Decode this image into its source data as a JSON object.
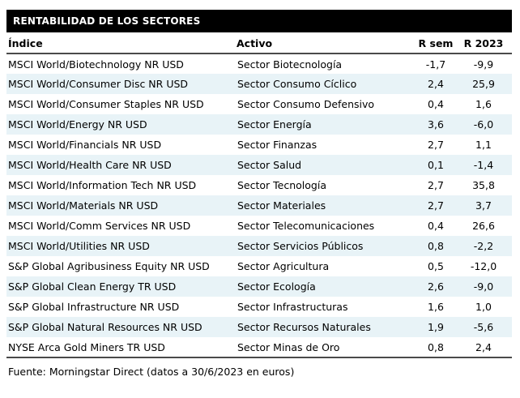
{
  "title": "RENTABILIDAD DE LOS SECTORES",
  "table": {
    "columns": [
      "Índice",
      "Activo",
      "R sem",
      "R 2023"
    ],
    "rows": [
      {
        "indice": "MSCI World/Biotechnology NR USD",
        "activo": "Sector Biotecnología",
        "r_sem": "-1,7",
        "r_2023": "-9,9"
      },
      {
        "indice": "MSCI World/Consumer Disc NR USD",
        "activo": "Sector Consumo Cíclico",
        "r_sem": "2,4",
        "r_2023": "25,9"
      },
      {
        "indice": "MSCI World/Consumer Staples NR USD",
        "activo": "Sector Consumo Defensivo",
        "r_sem": "0,4",
        "r_2023": "1,6"
      },
      {
        "indice": "MSCI World/Energy NR USD",
        "activo": "Sector Energía",
        "r_sem": "3,6",
        "r_2023": "-6,0"
      },
      {
        "indice": "MSCI World/Financials NR USD",
        "activo": "Sector Finanzas",
        "r_sem": "2,7",
        "r_2023": "1,1"
      },
      {
        "indice": "MSCI World/Health Care NR USD",
        "activo": "Sector Salud",
        "r_sem": "0,1",
        "r_2023": "-1,4"
      },
      {
        "indice": "MSCI World/Information Tech NR USD",
        "activo": "Sector Tecnología",
        "r_sem": "2,7",
        "r_2023": "35,8"
      },
      {
        "indice": "MSCI World/Materials NR USD",
        "activo": "Sector Materiales",
        "r_sem": "2,7",
        "r_2023": "3,7"
      },
      {
        "indice": "MSCI World/Comm Services NR USD",
        "activo": "Sector Telecomunicaciones",
        "r_sem": "0,4",
        "r_2023": "26,6"
      },
      {
        "indice": "MSCI World/Utilities NR USD",
        "activo": "Sector Servicios Públicos",
        "r_sem": "0,8",
        "r_2023": "-2,2"
      },
      {
        "indice": "S&P Global Agribusiness Equity NR USD",
        "activo": "Sector Agricultura",
        "r_sem": "0,5",
        "r_2023": "-12,0"
      },
      {
        "indice": "S&P Global Clean Energy TR USD",
        "activo": "Sector Ecología",
        "r_sem": "2,6",
        "r_2023": "-9,0"
      },
      {
        "indice": "S&P Global Infrastructure NR USD",
        "activo": "Sector Infrastructuras",
        "r_sem": "1,6",
        "r_2023": "1,0"
      },
      {
        "indice": "S&P Global Natural Resources NR USD",
        "activo": "Sector Recursos Naturales",
        "r_sem": "1,9",
        "r_2023": "-5,6"
      },
      {
        "indice": "NYSE Arca Gold Miners TR USD",
        "activo": "Sector Minas de Oro",
        "r_sem": "0,8",
        "r_2023": "2,4"
      }
    ]
  },
  "footer": "Fuente: Morningstar Direct (datos a 30/6/2023 en euros)",
  "colors": {
    "header_bg": "#000000",
    "header_text": "#ffffff",
    "row_alt": "#e8f3f7",
    "rule": "#4a4a4a",
    "text": "#000000"
  }
}
